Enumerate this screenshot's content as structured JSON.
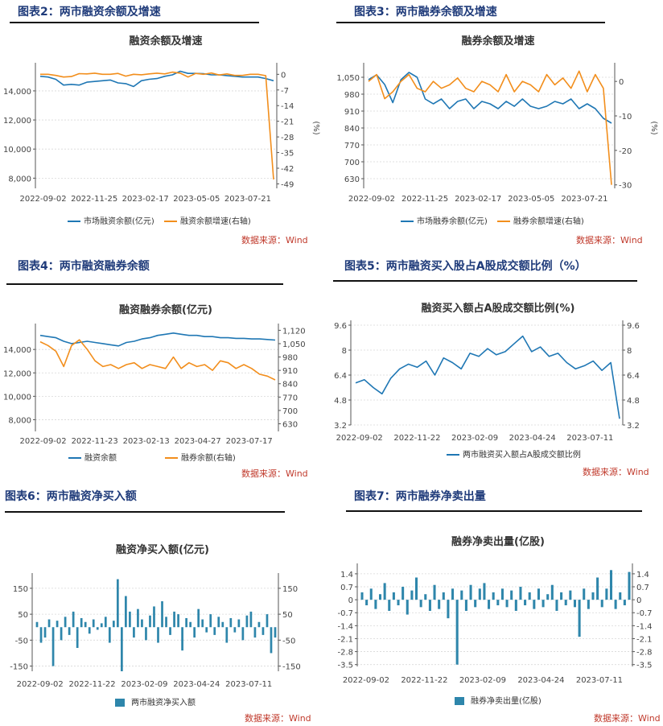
{
  "colors": {
    "blue": "#1f77b4",
    "orange": "#f28e1c",
    "bar": "#2e86ab",
    "title": "#1f3b7a",
    "source": "#c0392b"
  },
  "source_text": "数据来源：Wind",
  "figures": [
    {
      "id": "fig2",
      "title": "图表2：两市融资余额及增速"
    },
    {
      "id": "fig3",
      "title": "图表3：两市融券余额及增速"
    },
    {
      "id": "fig4",
      "title": "图表4：两市融资融券余额"
    },
    {
      "id": "fig5",
      "title": "图表5：两市融资买入股占A股成交额比例（%）"
    },
    {
      "id": "fig6",
      "title": "图表6：两市融资净买入额"
    },
    {
      "id": "fig7",
      "title": "图表7：两市融券净卖出量"
    }
  ],
  "chart_data": [
    {
      "type": "line",
      "title": "融资余额及增速",
      "x_ticks": [
        "2022-09-02",
        "2022-11-25",
        "2023-02-17",
        "2023-05-05",
        "2023-07-21"
      ],
      "y_ticks": [
        8000,
        10000,
        12000,
        14000
      ],
      "y_tick_labels": [
        "8,000",
        "10,000",
        "12,000",
        "14,000"
      ],
      "ylim": [
        7300,
        15600
      ],
      "y2_ticks": [
        0,
        -7,
        -14,
        -21,
        -28,
        -35,
        -42,
        -49
      ],
      "y2lim": [
        -51,
        3
      ],
      "y2label": "(%)",
      "grid": true,
      "legend_position": "bottom",
      "series": [
        {
          "name": "市场融资余额(亿元)",
          "axis": "left",
          "color": "blue",
          "values": [
            15000,
            14950,
            14800,
            14400,
            14450,
            14400,
            14600,
            14650,
            14700,
            14750,
            14550,
            14500,
            14300,
            14700,
            14800,
            14850,
            15000,
            15100,
            15350,
            15200,
            15200,
            15180,
            15100,
            15100,
            15050,
            15000,
            14950,
            14950,
            14950,
            14850,
            14700
          ]
        },
        {
          "name": "融资余额增速(右轴)",
          "axis": "right",
          "color": "orange",
          "values": [
            0,
            0,
            -0.5,
            -1.2,
            -1,
            0.3,
            0.2,
            0.5,
            0,
            0,
            0.4,
            -0.8,
            0,
            -0.2,
            0.2,
            0.5,
            0.2,
            1,
            0.5,
            -1.2,
            0.4,
            0,
            0.6,
            -0.3,
            0.2,
            -0.5,
            -0.5,
            0,
            0,
            -0.6,
            -47
          ]
        }
      ]
    },
    {
      "type": "line",
      "title": "融券余额及增速",
      "x_ticks": [
        "2022-09-02",
        "2022-11-25",
        "2023-02-17",
        "2023-05-05",
        "2023-07-21"
      ],
      "y_ticks": [
        630,
        700,
        770,
        840,
        910,
        980,
        1050
      ],
      "y_tick_labels": [
        "630",
        "700",
        "770",
        "840",
        "910",
        "980",
        "1,050"
      ],
      "ylim": [
        590,
        1090
      ],
      "y2_ticks": [
        0,
        -10,
        -20,
        -30
      ],
      "y2lim": [
        -31,
        4
      ],
      "y2label": "(%)",
      "grid": true,
      "legend_position": "bottom",
      "series": [
        {
          "name": "市场融券余额(亿元)",
          "axis": "left",
          "color": "blue",
          "values": [
            1040,
            1060,
            1020,
            945,
            1040,
            1070,
            1050,
            960,
            940,
            960,
            920,
            950,
            960,
            920,
            950,
            940,
            920,
            950,
            930,
            960,
            930,
            920,
            930,
            950,
            940,
            960,
            920,
            940,
            920,
            880,
            860
          ]
        },
        {
          "name": "融券余额增速(右轴)",
          "axis": "right",
          "color": "orange",
          "values": [
            0,
            2,
            -5,
            -3,
            0,
            2,
            -2,
            -3,
            0,
            -2,
            -1,
            1,
            -2,
            -3,
            0,
            -1,
            -3,
            2,
            -3,
            0,
            -1,
            -3,
            2,
            -1,
            1,
            -2,
            3,
            -3,
            2,
            -2,
            -30
          ]
        }
      ]
    },
    {
      "type": "line",
      "title": "融资融券余额(亿元)",
      "x_ticks": [
        "2022-09-02",
        "2022-11-23",
        "2023-02-13",
        "2023-04-27",
        "2023-07-17"
      ],
      "y_ticks": [
        8000,
        10000,
        12000,
        14000
      ],
      "y_tick_labels": [
        "8,000",
        "10,000",
        "12,000",
        "14,000"
      ],
      "ylim": [
        7000,
        15800
      ],
      "y2_ticks": [
        630,
        700,
        770,
        840,
        910,
        980,
        1050,
        1120
      ],
      "y2_tick_labels": [
        "630",
        "700",
        "770",
        "840",
        "910",
        "980",
        "1,050",
        "1,120"
      ],
      "y2lim": [
        590,
        1130
      ],
      "grid": true,
      "legend_position": "bottom",
      "series": [
        {
          "name": "融资余额",
          "axis": "left",
          "color": "blue",
          "values": [
            15200,
            15100,
            15000,
            14700,
            14500,
            14600,
            14700,
            14600,
            14500,
            14400,
            14300,
            14600,
            14700,
            14900,
            15000,
            15200,
            15300,
            15400,
            15300,
            15200,
            15200,
            15100,
            15100,
            15000,
            15000,
            14950,
            14950,
            14900,
            14900,
            14850,
            14800
          ]
        },
        {
          "name": "融券余额(右轴)",
          "axis": "right",
          "color": "orange",
          "values": [
            1060,
            1040,
            1010,
            930,
            1040,
            1070,
            1020,
            960,
            930,
            940,
            920,
            940,
            950,
            920,
            940,
            930,
            920,
            980,
            920,
            950,
            930,
            940,
            910,
            960,
            950,
            920,
            940,
            920,
            890,
            880,
            860
          ]
        }
      ]
    },
    {
      "type": "line",
      "title": "融资买入额占A股成交额比例(%)",
      "x_ticks": [
        "2022-09-02",
        "2022-11-22",
        "2023-02-09",
        "2023-04-24",
        "2023-07-11"
      ],
      "y_ticks": [
        3.2,
        4.8,
        6.4,
        8,
        9.6
      ],
      "ylim": [
        3.2,
        9.6
      ],
      "y2_ticks": [
        3.2,
        4.8,
        6.4,
        8,
        9.6
      ],
      "grid": true,
      "legend_position": "bottom",
      "series": [
        {
          "name": "两市融资买入额占A股成交额比例",
          "axis": "left",
          "color": "blue",
          "values": [
            5.9,
            6.1,
            5.6,
            5.2,
            6.2,
            6.8,
            7.1,
            6.9,
            7.3,
            6.4,
            7.5,
            7.2,
            6.8,
            7.8,
            7.6,
            8.1,
            7.7,
            7.9,
            8.4,
            8.9,
            7.9,
            8.2,
            7.6,
            7.8,
            7.2,
            6.8,
            7.0,
            7.3,
            6.7,
            7.2,
            3.6
          ]
        }
      ]
    },
    {
      "type": "bar",
      "title": "融资净买入额(亿元)",
      "x_ticks": [
        "2022-09-02",
        "2022-11-22",
        "2023-02-09",
        "2023-04-24",
        "2023-07-11"
      ],
      "y_ticks": [
        -150,
        -50,
        50,
        150
      ],
      "ylim": [
        -170,
        190
      ],
      "y2_ticks": [
        -150,
        -50,
        50,
        150
      ],
      "grid": true,
      "legend_position": "bottom",
      "series": [
        {
          "name": "两市融资净买入额",
          "axis": "left",
          "color": "bar",
          "values": [
            20,
            -60,
            -40,
            30,
            -150,
            25,
            -50,
            40,
            -30,
            60,
            -80,
            35,
            20,
            -25,
            30,
            -10,
            15,
            40,
            -60,
            25,
            185,
            -170,
            120,
            60,
            -40,
            70,
            30,
            -50,
            45,
            80,
            -60,
            100,
            40,
            -30,
            60,
            50,
            -90,
            35,
            20,
            -40,
            70,
            30,
            -20,
            50,
            -30,
            40,
            20,
            -60,
            35,
            -20,
            30,
            -50,
            45,
            60,
            -40,
            20,
            -30,
            50,
            -100,
            -40
          ]
        }
      ]
    },
    {
      "type": "bar",
      "title": "融券净卖出量(亿股)",
      "x_ticks": [
        "2022-09-02",
        "2022-11-22",
        "2023-02-09",
        "2023-04-24",
        "2023-07-11"
      ],
      "y_ticks": [
        1.4,
        0.7,
        0,
        -0.7,
        -1.4,
        -2.1,
        -2.8,
        -3.5
      ],
      "ylim": [
        -3.6,
        1.7
      ],
      "y2_ticks": [
        1.4,
        0.7,
        0,
        -0.7,
        -1.4,
        -2.1,
        -2.8,
        -3.5
      ],
      "grid": true,
      "legend_position": "bottom",
      "series": [
        {
          "name": "融券净卖出量(亿股)",
          "axis": "left",
          "color": "bar",
          "values": [
            0.4,
            -0.3,
            0.6,
            -0.5,
            0.3,
            0.9,
            -0.6,
            0.4,
            -0.3,
            0.7,
            -0.8,
            0.5,
            1.2,
            -0.4,
            0.3,
            -0.6,
            0.8,
            -0.5,
            0.4,
            -1.0,
            0.6,
            -3.5,
            0.5,
            -0.6,
            0.8,
            -0.4,
            0.6,
            0.9,
            -0.5,
            0.4,
            -0.3,
            0.6,
            -0.4,
            0.5,
            -0.6,
            0.7,
            -0.3,
            0.4,
            -0.5,
            0.6,
            -0.4,
            0.3,
            0.8,
            -0.6,
            0.4,
            -0.3,
            0.5,
            -0.4,
            -2.0,
            0.6,
            -0.5,
            0.4,
            1.2,
            -0.4,
            0.6,
            1.6,
            -0.5,
            0.4,
            -0.3,
            1.5
          ]
        }
      ]
    }
  ]
}
